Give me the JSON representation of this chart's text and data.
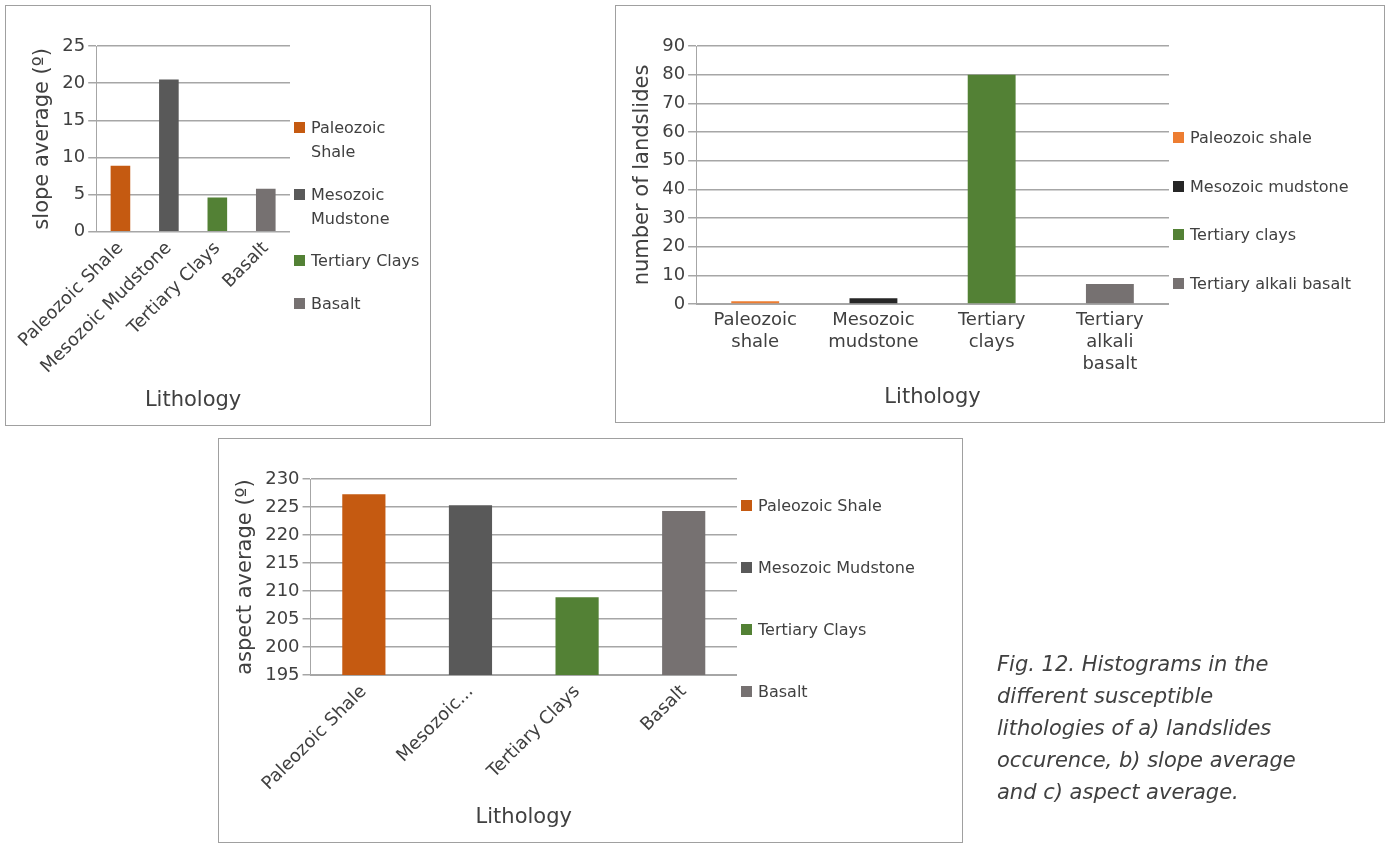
{
  "chart_data": [
    {
      "type": "bar",
      "xlabel": "Lithology",
      "ylabel": "slope average (º)",
      "categories": [
        "Paleozoic Shale",
        "Mesozoic Mudstone",
        "Tertiary Clays",
        "Basalt"
      ],
      "series": [
        {
          "name": "Paleozoic Shale",
          "color": "#c55a11",
          "values": [
            8.9,
            null,
            null,
            null
          ]
        },
        {
          "name": "Mesozoic Mudstone",
          "color": "#595959",
          "values": [
            null,
            20.5,
            null,
            null
          ]
        },
        {
          "name": "Tertiary Clays",
          "color": "#538135",
          "values": [
            null,
            null,
            4.6,
            null
          ]
        },
        {
          "name": "Basalt",
          "color": "#767171",
          "values": [
            null,
            null,
            null,
            5.8
          ]
        }
      ],
      "ylim": [
        0,
        25
      ],
      "yticks": [
        0,
        5,
        10,
        15,
        20,
        25
      ],
      "grid": "y",
      "legend": "right"
    },
    {
      "type": "bar",
      "xlabel": "Lithology",
      "ylabel": "number of landslides",
      "categories": [
        "Paleozoic shale",
        "Mesozoic mudstone",
        "Tertiary clays",
        "Tertiary alkali basalt"
      ],
      "series": [
        {
          "name": "Paleozoic shale",
          "color": "#ed7d31",
          "values": [
            1,
            null,
            null,
            null
          ]
        },
        {
          "name": "Mesozoic mudstone",
          "color": "#262626",
          "values": [
            null,
            2,
            null,
            null
          ]
        },
        {
          "name": "Tertiary clays",
          "color": "#538135",
          "values": [
            null,
            null,
            80,
            null
          ]
        },
        {
          "name": "Tertiary alkali basalt",
          "color": "#767171",
          "values": [
            null,
            null,
            null,
            7
          ]
        }
      ],
      "ylim": [
        0,
        90
      ],
      "yticks": [
        0,
        10,
        20,
        30,
        40,
        50,
        60,
        70,
        80,
        90
      ],
      "grid": "y",
      "legend": "right"
    },
    {
      "type": "bar",
      "xlabel": "Lithology",
      "ylabel": "aspect average (º)",
      "categories": [
        "Paleozoic Shale",
        "Mesozoic...",
        "Tertiary Clays",
        "Basalt"
      ],
      "series": [
        {
          "name": "Paleozoic Shale",
          "color": "#c55a11",
          "values": [
            227.3,
            null,
            null,
            null
          ]
        },
        {
          "name": "Mesozoic Mudstone",
          "color": "#595959",
          "values": [
            null,
            225.3,
            null,
            null
          ]
        },
        {
          "name": "Tertiary Clays",
          "color": "#538135",
          "values": [
            null,
            null,
            208.9,
            null
          ]
        },
        {
          "name": "Basalt",
          "color": "#767171",
          "values": [
            null,
            null,
            null,
            224.3
          ]
        }
      ],
      "ylim": [
        195,
        230
      ],
      "yticks": [
        195,
        200,
        205,
        210,
        215,
        220,
        225,
        230
      ],
      "grid": "y",
      "legend": "right"
    },
    {
      "type": "other",
      "annotations": [
        "Fig. 12. Histograms in the different susceptible lithologies of a) landslides occurence, b) slope average and c) aspect average."
      ]
    }
  ]
}
